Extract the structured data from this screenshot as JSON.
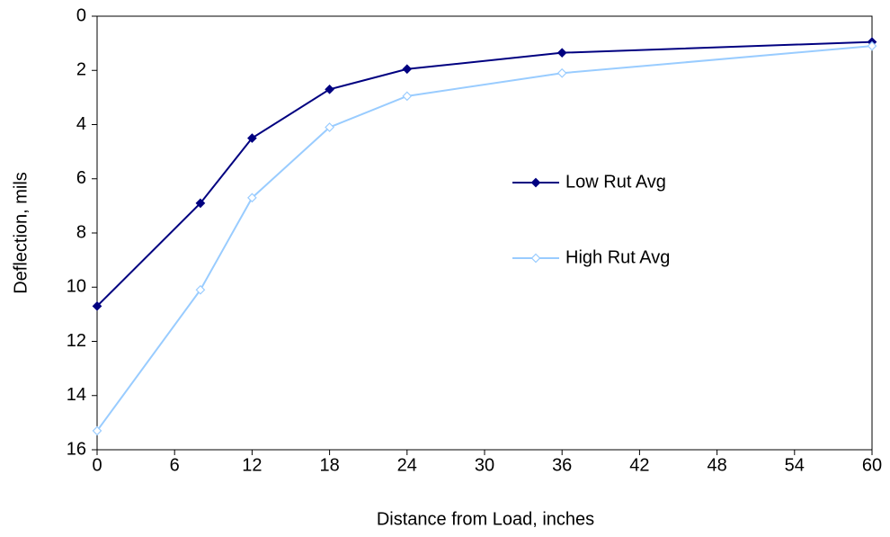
{
  "chart_data": {
    "type": "line",
    "x_label": "Distance from Load, inches",
    "y_label": "Deflection, mils",
    "x": [
      0,
      8,
      12,
      18,
      24,
      36,
      60
    ],
    "series": [
      {
        "name": "Low Rut Avg",
        "color": "#000080",
        "marker_fill": "#000080",
        "values": [
          10.7,
          6.9,
          4.5,
          2.7,
          1.95,
          1.35,
          0.95
        ]
      },
      {
        "name": "High Rut Avg",
        "color": "#99ccff",
        "marker_fill": "#ffffff",
        "values": [
          15.3,
          10.1,
          6.7,
          4.1,
          2.95,
          2.1,
          1.1
        ]
      }
    ],
    "xlim": [
      0,
      60
    ],
    "xticks": [
      0,
      6,
      12,
      18,
      24,
      30,
      36,
      42,
      48,
      54,
      60
    ],
    "ylim": [
      16,
      0
    ],
    "yticks": [
      0,
      2,
      4,
      6,
      8,
      10,
      12,
      14,
      16
    ],
    "y_inverted": true,
    "grid": false,
    "legend_position": "right"
  }
}
